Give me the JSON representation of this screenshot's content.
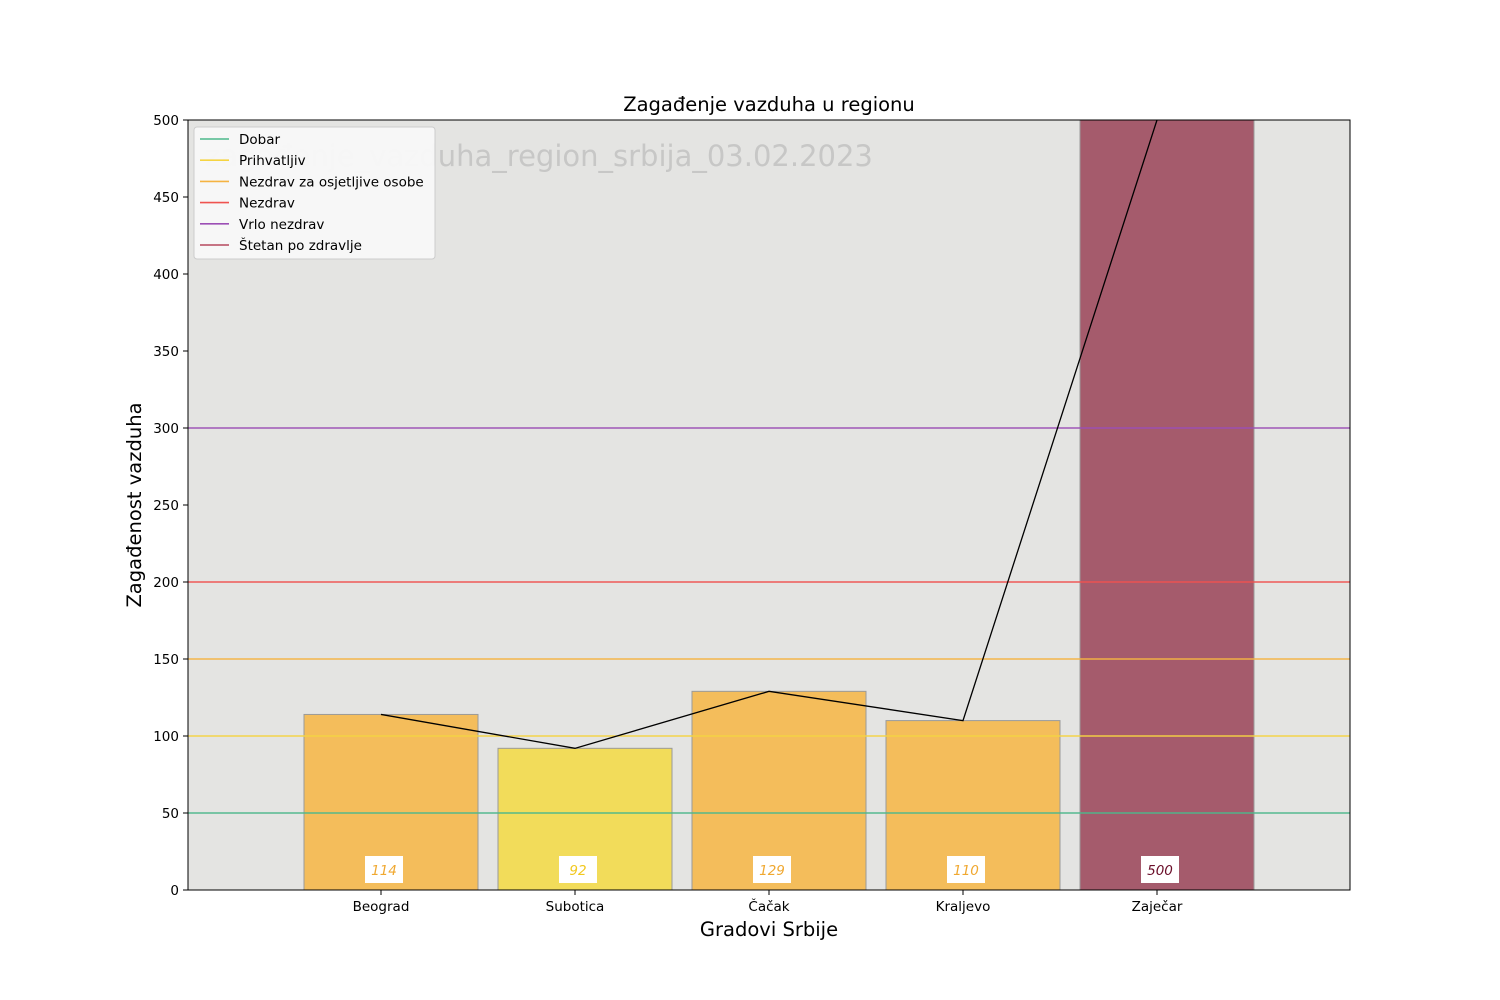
{
  "chart_data": {
    "type": "bar",
    "title": "Zagađenje vazduha u regionu",
    "xlabel": "Gradovi Srbije",
    "ylabel": "Zagađenost vazduha",
    "watermark": "zagađenje_vazduha_region_srbija_03.02.2023",
    "categories": [
      "Beograd",
      "Subotica",
      "Čačak",
      "Kraljevo",
      "Zaječar"
    ],
    "values": [
      114,
      92,
      129,
      110,
      500
    ],
    "value_labels": [
      "114",
      "92",
      "129",
      "110",
      "500"
    ],
    "bar_colors": [
      "#f4bd5b",
      "#f2dc5a",
      "#f4bd5b",
      "#f4bd5b",
      "#a55b6c"
    ],
    "value_label_colors": [
      "#f0a830",
      "#f2c81e",
      "#f0a830",
      "#f0a830",
      "#6b0f2a"
    ],
    "line_overlay": {
      "values": [
        114,
        92,
        129,
        110,
        500
      ],
      "color": "#000000"
    },
    "ylim": [
      0,
      500
    ],
    "yticks": [
      0,
      50,
      100,
      150,
      200,
      250,
      300,
      350,
      400,
      450,
      500
    ],
    "thresholds": [
      {
        "name": "Dobar",
        "value": 50,
        "color": "#4db88c"
      },
      {
        "name": "Prihvatljiv",
        "value": 100,
        "color": "#f5d442"
      },
      {
        "name": "Nezdrav za osjetljive osobe",
        "value": 150,
        "color": "#f5b342"
      },
      {
        "name": "Nezdrav",
        "value": 200,
        "color": "#ef5350"
      },
      {
        "name": "Vrlo nezdrav",
        "value": 300,
        "color": "#9c4fb5"
      },
      {
        "name": "Štetan po zdravlje",
        "value": null,
        "color": "#b5485f"
      }
    ],
    "legend_position": "top-left",
    "grid": false,
    "plot_background": "#e4e4e2"
  }
}
